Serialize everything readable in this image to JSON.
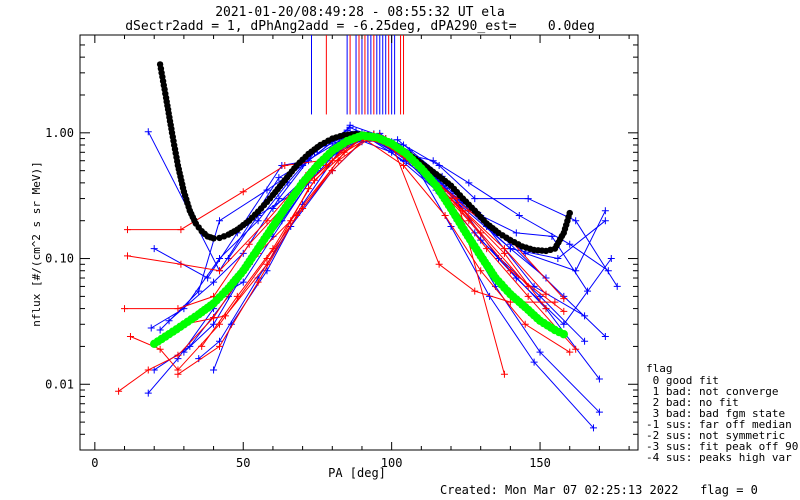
{
  "chart_data": {
    "type": "line",
    "title": "2021-01-20/08:49:28 - 08:55:32 UT ela",
    "subtitle": "dSectr2add = 1, dPhAng2add = -6.25deg, dPA290_est=    0.0deg",
    "xlabel": "PA [deg]",
    "ylabel": "nflux [#/(cm^2 s sr MeV)]",
    "xlim": [
      -5,
      183
    ],
    "ylim": [
      0.003,
      6.0
    ],
    "yscale": "log",
    "xticks": [
      0,
      50,
      100,
      150
    ],
    "xtick_labels": [
      "0",
      "50",
      "100",
      "150"
    ],
    "yticks": [
      0.01,
      0.1,
      1.0
    ],
    "ytick_labels": [
      "0.01",
      "0.10",
      "1.00"
    ],
    "grid": false,
    "colors": {
      "blue": "#0000ff",
      "red": "#ff0000",
      "green": "#00ff00",
      "black": "#000000"
    },
    "series": [
      {
        "color": "#000000",
        "style": "thick-dots",
        "x": [
          22,
          24,
          26,
          28,
          30,
          32,
          34,
          36,
          38,
          40,
          42,
          45,
          48,
          52,
          56,
          60,
          64,
          68,
          72,
          76,
          80,
          84,
          88,
          92,
          96,
          100,
          104,
          108,
          112,
          116,
          120,
          124,
          128,
          132,
          136,
          140,
          144,
          148,
          152,
          155,
          158,
          160
        ],
        "y": [
          3.5,
          1.9,
          1.0,
          0.55,
          0.34,
          0.24,
          0.19,
          0.165,
          0.15,
          0.145,
          0.146,
          0.155,
          0.17,
          0.2,
          0.25,
          0.32,
          0.42,
          0.55,
          0.68,
          0.8,
          0.9,
          0.96,
          0.98,
          0.96,
          0.9,
          0.82,
          0.72,
          0.62,
          0.53,
          0.45,
          0.38,
          0.3,
          0.24,
          0.19,
          0.16,
          0.14,
          0.125,
          0.117,
          0.115,
          0.12,
          0.16,
          0.23
        ]
      },
      {
        "color": "#00ff00",
        "style": "thick-dots",
        "x": [
          20,
          25,
          30,
          35,
          40,
          45,
          50,
          55,
          60,
          65,
          70,
          75,
          80,
          85,
          90,
          95,
          100,
          105,
          110,
          115,
          120,
          125,
          130,
          135,
          140,
          145,
          150,
          155,
          158
        ],
        "y": [
          0.021,
          0.025,
          0.03,
          0.036,
          0.044,
          0.058,
          0.08,
          0.12,
          0.18,
          0.27,
          0.4,
          0.55,
          0.72,
          0.86,
          0.95,
          0.92,
          0.82,
          0.68,
          0.52,
          0.38,
          0.25,
          0.16,
          0.105,
          0.07,
          0.052,
          0.041,
          0.032,
          0.027,
          0.025
        ]
      },
      {
        "color": "#0000ff",
        "name_hidden": true,
        "x": [
          18,
          42,
          62,
          88,
          110,
          140,
          152
        ],
        "y": [
          1.02,
          0.08,
          0.44,
          1.03,
          0.55,
          0.12,
          0.07
        ]
      },
      {
        "color": "#0000ff",
        "x": [
          19,
          30,
          42,
          55,
          65,
          75,
          85,
          95,
          105,
          118,
          130,
          150,
          165
        ],
        "y": [
          0.028,
          0.04,
          0.1,
          0.2,
          0.4,
          0.75,
          0.9,
          0.88,
          0.6,
          0.3,
          0.14,
          0.05,
          0.022
        ]
      },
      {
        "color": "#0000ff",
        "x": [
          20,
          32,
          45,
          56,
          68,
          78,
          88,
          98,
          110,
          122,
          135,
          150,
          170
        ],
        "y": [
          0.013,
          0.02,
          0.05,
          0.13,
          0.35,
          0.6,
          0.95,
          0.9,
          0.5,
          0.2,
          0.06,
          0.018,
          0.006
        ]
      },
      {
        "color": "#0000ff",
        "x": [
          18,
          28,
          40,
          52,
          63,
          75,
          86,
          96,
          108,
          120,
          133,
          148,
          168
        ],
        "y": [
          0.0085,
          0.016,
          0.04,
          0.09,
          0.2,
          0.5,
          1.15,
          0.95,
          0.55,
          0.18,
          0.05,
          0.015,
          0.0045
        ]
      },
      {
        "color": "#0000ff",
        "x": [
          22,
          35,
          42,
          58,
          70,
          85,
          92,
          100,
          114,
          126,
          143,
          160,
          173
        ],
        "y": [
          0.027,
          0.055,
          0.2,
          0.35,
          0.55,
          1.05,
          0.93,
          0.72,
          0.6,
          0.4,
          0.22,
          0.13,
          0.08
        ]
      },
      {
        "color": "#0000ff",
        "x": [
          20,
          38,
          48,
          63,
          72,
          80,
          90,
          104,
          116,
          128,
          146,
          162,
          176
        ],
        "y": [
          0.12,
          0.07,
          0.16,
          0.55,
          0.6,
          0.85,
          1.0,
          0.8,
          0.55,
          0.3,
          0.3,
          0.2,
          0.06
        ]
      },
      {
        "color": "#0000ff",
        "x": [
          25,
          40,
          50,
          62,
          74,
          86,
          98,
          112,
          124,
          140,
          158,
          172
        ],
        "y": [
          0.032,
          0.065,
          0.11,
          0.3,
          0.7,
          1.1,
          0.83,
          0.45,
          0.28,
          0.13,
          0.05,
          0.024
        ]
      },
      {
        "color": "#0000ff",
        "x": [
          30,
          40,
          52,
          64,
          76,
          88,
          100,
          115,
          128,
          142,
          158,
          174
        ],
        "y": [
          0.018,
          0.03,
          0.09,
          0.25,
          0.55,
          0.9,
          0.7,
          0.35,
          0.16,
          0.07,
          0.03,
          0.1
        ]
      },
      {
        "color": "#0000ff",
        "x": [
          35,
          42,
          55,
          66,
          80,
          90,
          102,
          117,
          132,
          148,
          165
        ],
        "y": [
          0.016,
          0.022,
          0.07,
          0.18,
          0.5,
          0.85,
          0.88,
          0.45,
          0.18,
          0.06,
          0.035
        ]
      },
      {
        "color": "#0000ff",
        "x": [
          40,
          46,
          58,
          70,
          82,
          94,
          106,
          120,
          136,
          152,
          170
        ],
        "y": [
          0.013,
          0.03,
          0.08,
          0.27,
          0.7,
          0.98,
          0.72,
          0.33,
          0.1,
          0.04,
          0.011
        ]
      },
      {
        "color": "#0000ff",
        "x": [
          42,
          50,
          60,
          72,
          84,
          96,
          108,
          122,
          140,
          156,
          172
        ],
        "y": [
          0.05,
          0.065,
          0.15,
          0.4,
          0.82,
          0.99,
          0.62,
          0.28,
          0.12,
          0.1,
          0.2
        ]
      },
      {
        "color": "#0000ff",
        "x": [
          45,
          55,
          66,
          76,
          88,
          100,
          112,
          128,
          145,
          162,
          172
        ],
        "y": [
          0.1,
          0.22,
          0.32,
          0.6,
          1.0,
          0.85,
          0.5,
          0.24,
          0.11,
          0.08,
          0.24
        ]
      },
      {
        "color": "#0000ff",
        "x": [
          60,
          70,
          80,
          92,
          104,
          118,
          130,
          142,
          154,
          166
        ],
        "y": [
          0.25,
          0.42,
          0.7,
          0.92,
          0.6,
          0.36,
          0.22,
          0.16,
          0.15,
          0.055
        ]
      },
      {
        "color": "#ff0000",
        "x": [
          8,
          18,
          28,
          40,
          52,
          66,
          80,
          90,
          104,
          118,
          130,
          145,
          160
        ],
        "y": [
          0.0088,
          0.013,
          0.017,
          0.034,
          0.09,
          0.3,
          0.6,
          0.92,
          0.55,
          0.22,
          0.08,
          0.03,
          0.018
        ]
      },
      {
        "color": "#ff0000",
        "x": [
          12,
          22,
          28,
          42,
          58,
          70,
          84,
          94,
          106,
          120,
          132,
          146,
          162
        ],
        "y": [
          0.024,
          0.019,
          0.013,
          0.03,
          0.1,
          0.25,
          0.7,
          0.97,
          0.6,
          0.27,
          0.12,
          0.05,
          0.019
        ]
      },
      {
        "color": "#ff0000",
        "x": [
          10,
          28,
          40,
          52,
          65,
          78,
          88,
          100,
          116,
          128,
          140,
          155
        ],
        "y": [
          0.04,
          0.04,
          0.05,
          0.13,
          0.28,
          0.55,
          0.9,
          0.82,
          0.09,
          0.055,
          0.045,
          0.045
        ]
      },
      {
        "color": "#ff0000",
        "x": [
          11,
          29,
          42,
          58,
          72,
          84,
          96,
          108,
          122,
          138
        ],
        "y": [
          0.105,
          0.09,
          0.08,
          0.2,
          0.48,
          0.85,
          0.95,
          0.55,
          0.3,
          0.012
        ]
      },
      {
        "color": "#ff0000",
        "x": [
          11,
          29,
          50,
          64,
          76,
          88,
          100,
          112,
          126,
          140,
          158
        ],
        "y": [
          0.17,
          0.17,
          0.34,
          0.55,
          0.6,
          0.93,
          0.8,
          0.46,
          0.24,
          0.14,
          0.048
        ]
      },
      {
        "color": "#ff0000",
        "x": [
          28,
          42,
          55,
          68,
          80,
          92,
          104,
          120,
          138,
          152
        ],
        "y": [
          0.012,
          0.02,
          0.065,
          0.22,
          0.5,
          0.96,
          0.65,
          0.3,
          0.12,
          0.052
        ]
      },
      {
        "color": "#ff0000",
        "x": [
          30,
          44,
          58,
          72,
          86,
          98,
          112,
          126,
          140,
          158
        ],
        "y": [
          0.03,
          0.035,
          0.09,
          0.36,
          0.88,
          0.9,
          0.45,
          0.2,
          0.08,
          0.038
        ]
      },
      {
        "color": "#ff0000",
        "x": [
          36,
          48,
          60,
          74,
          90,
          102,
          116,
          130,
          146
        ],
        "y": [
          0.02,
          0.05,
          0.12,
          0.42,
          0.92,
          0.75,
          0.38,
          0.16,
          0.06
        ]
      },
      {
        "color": "#ff0000",
        "x": [
          55,
          66,
          82,
          94,
          110,
          124,
          138,
          152
        ],
        "y": [
          0.11,
          0.2,
          0.6,
          0.96,
          0.5,
          0.24,
          0.11,
          0.04
        ]
      }
    ],
    "vlines": {
      "base": 1.4,
      "blue": [
        {
          "x": 73,
          "top": 6.0
        },
        {
          "x": 85,
          "top": 6.0
        },
        {
          "x": 88,
          "top": 6.0
        },
        {
          "x": 90,
          "top": 6.0
        },
        {
          "x": 92,
          "top": 6.0
        },
        {
          "x": 93,
          "top": 6.0
        },
        {
          "x": 95,
          "top": 6.0
        },
        {
          "x": 96,
          "top": 6.0
        },
        {
          "x": 97,
          "top": 6.0
        },
        {
          "x": 98,
          "top": 6.0
        },
        {
          "x": 100,
          "top": 6.0
        },
        {
          "x": 101,
          "top": 6.0
        }
      ],
      "red": [
        {
          "x": 78,
          "top": 6.0
        },
        {
          "x": 86,
          "top": 6.0
        },
        {
          "x": 89,
          "top": 6.0
        },
        {
          "x": 91,
          "top": 6.0
        },
        {
          "x": 94,
          "top": 6.0
        },
        {
          "x": 99,
          "top": 6.0
        },
        {
          "x": 103,
          "top": 6.0
        },
        {
          "x": 104,
          "top": 6.0
        }
      ]
    },
    "legend": {
      "placement": "right",
      "title": "flag",
      "entries": [
        " 0 good fit",
        " 1 bad: not converge",
        " 2 bad: no fit",
        " 3 bad: bad fgm state",
        "-1 sus: far off median",
        "-2 sus: not symmetric",
        "-3 sus: fit peak off 90",
        "-4 sus: peaks high var"
      ]
    },
    "footer": "Created: Mon Mar 07 02:25:13 2022   flag = 0"
  }
}
